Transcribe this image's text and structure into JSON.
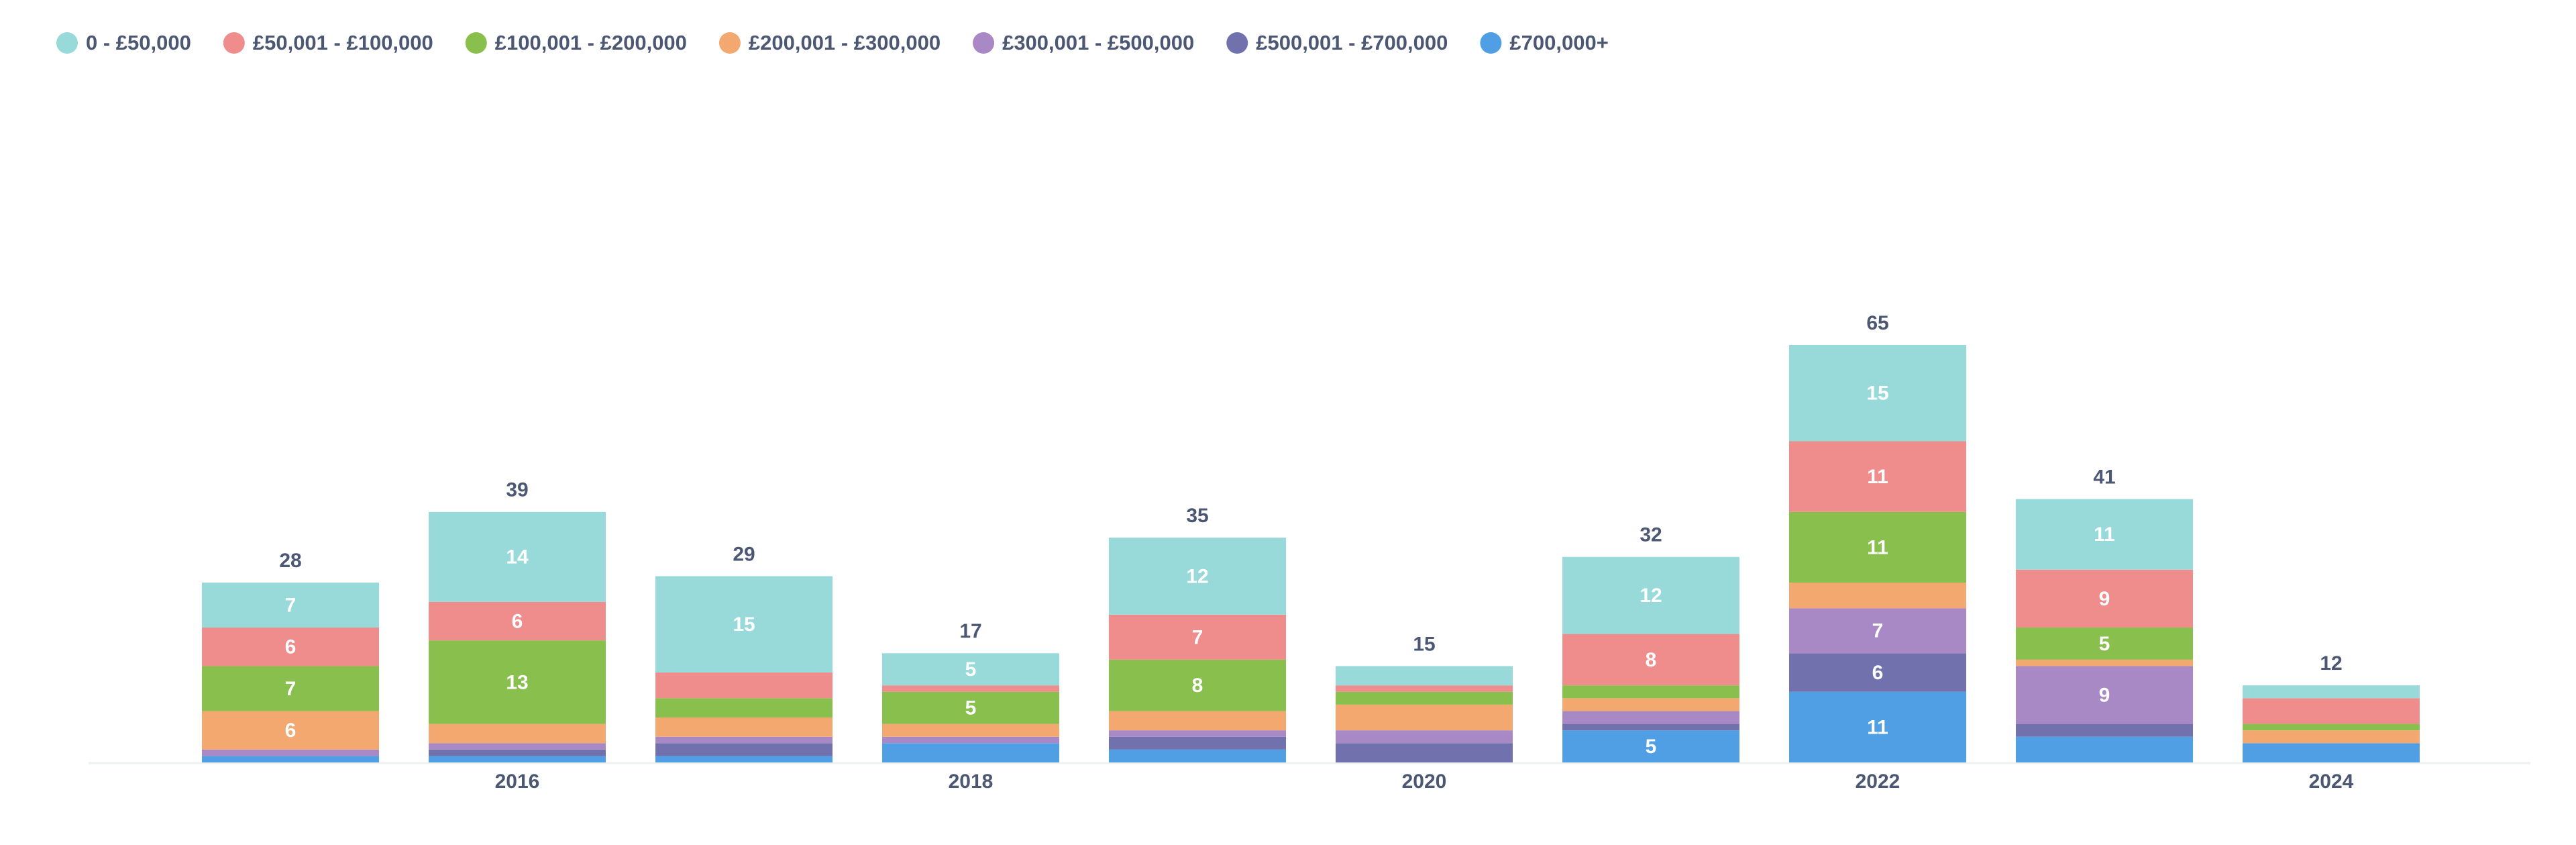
{
  "chart_data": {
    "type": "stacked-bar",
    "categories": [
      null,
      "2016",
      null,
      "2018",
      null,
      "2020",
      null,
      "2022",
      null,
      "2024"
    ],
    "series": [
      {
        "name": "£700,000+",
        "color": "#509ee3",
        "values": [
          1,
          1,
          1,
          3,
          2,
          0,
          5,
          11,
          4,
          3
        ]
      },
      {
        "name": "£500,001 - £700,000",
        "color": "#7172ad",
        "values": [
          0,
          1,
          2,
          0,
          2,
          3,
          1,
          6,
          2,
          0
        ]
      },
      {
        "name": "£300,001 - £500,000",
        "color": "#a989c5",
        "values": [
          1,
          1,
          1,
          1,
          1,
          2,
          2,
          7,
          9,
          0
        ]
      },
      {
        "name": "£200,001 - £300,000",
        "color": "#f2a86f",
        "values": [
          6,
          3,
          3,
          2,
          3,
          4,
          2,
          4,
          1,
          2
        ]
      },
      {
        "name": "£100,001 - £200,000",
        "color": "#88bf4d",
        "values": [
          7,
          13,
          3,
          5,
          8,
          2,
          2,
          11,
          5,
          1
        ]
      },
      {
        "name": "£50,001 - £100,000",
        "color": "#ef8c8c",
        "values": [
          6,
          6,
          4,
          1,
          7,
          1,
          8,
          11,
          9,
          4
        ]
      },
      {
        "name": "0 - £50,000",
        "color": "#98d9d9",
        "values": [
          7,
          14,
          15,
          5,
          12,
          3,
          12,
          15,
          11,
          2
        ]
      }
    ],
    "totals": [
      28,
      39,
      29,
      17,
      35,
      15,
      32,
      65,
      41,
      12
    ],
    "ylim": [
      0,
      100
    ]
  }
}
